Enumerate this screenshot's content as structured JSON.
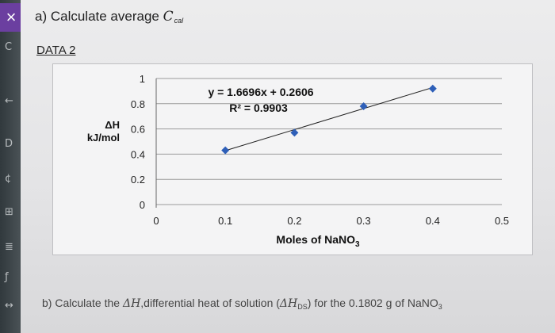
{
  "question_a": {
    "prefix": "a) Calculate average ",
    "symbol": "C",
    "subscript": "cal"
  },
  "data_title": "DATA 2",
  "more_icon": "•••",
  "question_b": {
    "prefix": "b) Calculate the ",
    "dh_symbol": "ΔH",
    "middle": ",differential heat of solution (",
    "dhds_symbol": "ΔH",
    "dhds_sub": "DS",
    "suffix": ") for the 0.1802 g of NaNO",
    "suffix_sub": "3"
  },
  "left_strip": {
    "glyphs": [
      "C",
      "←",
      "D",
      "¢",
      "⊞",
      "≣",
      "ƒ",
      "↔"
    ]
  },
  "chart_data": {
    "type": "scatter",
    "x": [
      0.1,
      0.2,
      0.3,
      0.4
    ],
    "y": [
      0.43,
      0.57,
      0.78,
      0.92
    ],
    "xlim": [
      0,
      0.5
    ],
    "ylim": [
      0,
      1
    ],
    "xticks": [
      "0",
      "0.1",
      "0.2",
      "0.3",
      "0.4",
      "0.5"
    ],
    "yticks": [
      "0",
      "0.2",
      "0.4",
      "0.6",
      "0.8",
      "1"
    ],
    "xlabel": "Moles of NaNO",
    "xlabel_sub": "3",
    "ylabel_line1": "ΔH",
    "ylabel_line2": "kJ/mol",
    "trendline": {
      "slope": 1.6696,
      "intercept": 0.2606,
      "x_range": [
        0.1,
        0.4
      ]
    },
    "annotations": {
      "equation": "y = 1.6696x + 0.2606",
      "r2": "R² = 0.9903"
    },
    "grid": true,
    "marker_color": "#2e5fb8",
    "line_color": "#222222"
  }
}
